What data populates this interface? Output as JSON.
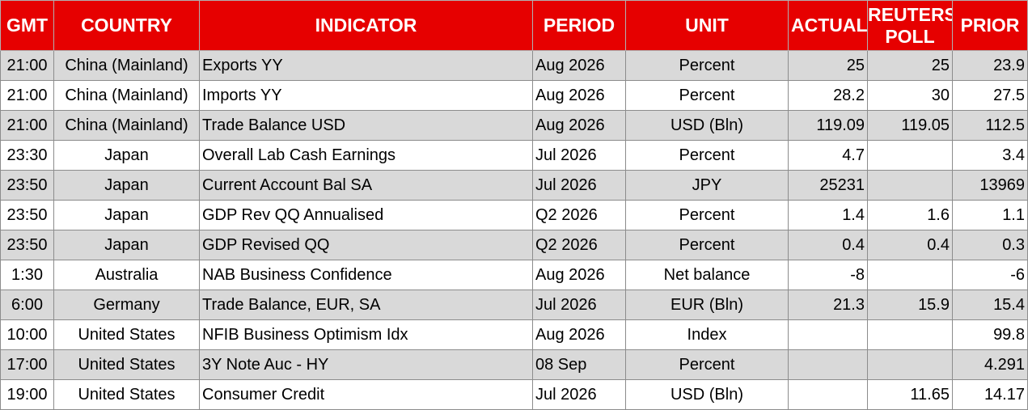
{
  "header": {
    "gmt": "GMT",
    "country": "COUNTRY",
    "indicator": "INDICATOR",
    "period": "PERIOD",
    "unit": "UNIT",
    "actual": "ACTUAL",
    "reuters_line1": "REUTERS",
    "reuters_line2": "POLL",
    "prior": "PRIOR"
  },
  "rows": [
    {
      "gmt": "21:00",
      "country": "China (Mainland)",
      "indicator": "Exports YY",
      "period": "Aug 2026",
      "unit": "Percent",
      "actual": "25",
      "reuters": "25",
      "prior": "23.9"
    },
    {
      "gmt": "21:00",
      "country": "China (Mainland)",
      "indicator": "Imports YY",
      "period": "Aug 2026",
      "unit": "Percent",
      "actual": "28.2",
      "reuters": "30",
      "prior": "27.5"
    },
    {
      "gmt": "21:00",
      "country": "China (Mainland)",
      "indicator": "Trade Balance USD",
      "period": "Aug 2026",
      "unit": "USD (Bln)",
      "actual": "119.09",
      "reuters": "119.05",
      "prior": "112.5"
    },
    {
      "gmt": "23:30",
      "country": "Japan",
      "indicator": "Overall Lab Cash Earnings",
      "period": "Jul 2026",
      "unit": "Percent",
      "actual": "4.7",
      "reuters": "",
      "prior": "3.4"
    },
    {
      "gmt": "23:50",
      "country": "Japan",
      "indicator": "Current Account Bal SA",
      "period": "Jul 2026",
      "unit": "JPY",
      "actual": "25231",
      "reuters": "",
      "prior": "13969"
    },
    {
      "gmt": "23:50",
      "country": "Japan",
      "indicator": "GDP Rev QQ Annualised",
      "period": "Q2 2026",
      "unit": "Percent",
      "actual": "1.4",
      "reuters": "1.6",
      "prior": "1.1"
    },
    {
      "gmt": "23:50",
      "country": "Japan",
      "indicator": "GDP Revised QQ",
      "period": "Q2 2026",
      "unit": "Percent",
      "actual": "0.4",
      "reuters": "0.4",
      "prior": "0.3"
    },
    {
      "gmt": "1:30",
      "country": "Australia",
      "indicator": "NAB Business Confidence",
      "period": "Aug 2026",
      "unit": "Net balance",
      "actual": "-8",
      "reuters": "",
      "prior": "-6"
    },
    {
      "gmt": "6:00",
      "country": "Germany",
      "indicator": "Trade Balance, EUR, SA",
      "period": "Jul 2026",
      "unit": "EUR (Bln)",
      "actual": "21.3",
      "reuters": "15.9",
      "prior": "15.4"
    },
    {
      "gmt": "10:00",
      "country": "United States",
      "indicator": "NFIB Business Optimism Idx",
      "period": "Aug 2026",
      "unit": "Index",
      "actual": "",
      "reuters": "",
      "prior": "99.8"
    },
    {
      "gmt": "17:00",
      "country": "United States",
      "indicator": "3Y Note Auc - HY",
      "period": "08 Sep",
      "unit": "Percent",
      "actual": "",
      "reuters": "",
      "prior": "4.291"
    },
    {
      "gmt": "19:00",
      "country": "United States",
      "indicator": "Consumer Credit",
      "period": "Jul 2026",
      "unit": "USD (Bln)",
      "actual": "",
      "reuters": "11.65",
      "prior": "14.17"
    }
  ],
  "colors": {
    "header_bg": "#e60000",
    "header_text": "#ffffff",
    "row_shade": "#d9d9d9",
    "row_plain": "#ffffff"
  }
}
